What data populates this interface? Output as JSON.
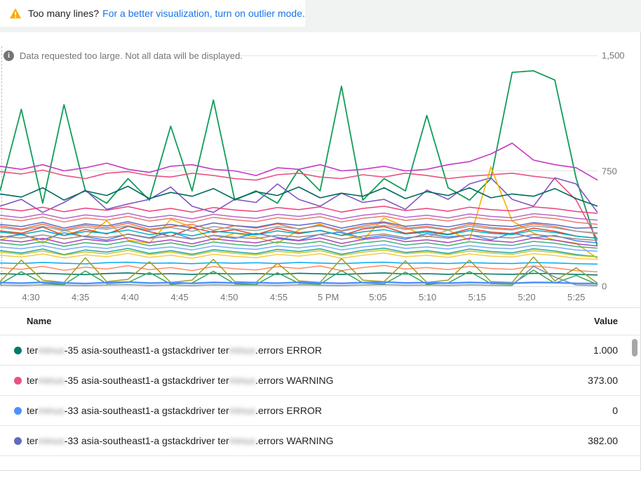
{
  "banner": {
    "text": "Too many lines?",
    "link": "For a better visualization, turn on outlier mode.",
    "warning_color": "#F9AB00",
    "link_color": "#1a73e8"
  },
  "notice": {
    "icon": "info",
    "text": "Data requested too large. Not all data will be displayed."
  },
  "chart_data": {
    "type": "line",
    "title": "",
    "xlabel": "",
    "ylabel": "",
    "ylim": [
      0,
      1500
    ],
    "grid": "horizontal",
    "legend_position": "bottom-table",
    "x_ticks": [
      "4:30",
      "4:35",
      "4:40",
      "4:45",
      "4:50",
      "4:55",
      "5 PM",
      "5:05",
      "5:10",
      "5:15",
      "5:20",
      "5:25"
    ],
    "y_ticks": [
      {
        "label": "1,500",
        "value": 1500
      },
      {
        "label": "750",
        "value": 750
      },
      {
        "label": "0",
        "value": 0
      }
    ],
    "series": [
      {
        "color": "#0F9D58",
        "w": 1.8,
        "values": [
          620,
          1150,
          540,
          1180,
          620,
          540,
          700,
          560,
          1040,
          620,
          1210,
          560,
          620,
          540,
          760,
          620,
          1300,
          560,
          700,
          620,
          1110,
          640,
          560,
          700,
          1390,
          1400,
          1340,
          700,
          260
        ]
      },
      {
        "color": "#C53AC1",
        "w": 1.6,
        "values": [
          780,
          760,
          790,
          750,
          770,
          800,
          760,
          740,
          780,
          790,
          760,
          750,
          720,
          770,
          760,
          790,
          750,
          760,
          780,
          750,
          760,
          790,
          810,
          860,
          930,
          820,
          790,
          770,
          690
        ]
      },
      {
        "color": "#E8537F",
        "w": 1.6,
        "values": [
          745,
          730,
          755,
          720,
          700,
          735,
          745,
          720,
          710,
          735,
          720,
          700,
          690,
          725,
          735,
          710,
          700,
          725,
          710,
          735,
          720,
          700,
          715,
          725,
          735,
          715,
          700,
          560,
          300
        ]
      },
      {
        "color": "#7E57C2",
        "w": 1.6,
        "values": [
          520,
          565,
          480,
          545,
          625,
          500,
          535,
          565,
          645,
          520,
          480,
          565,
          545,
          665,
          565,
          520,
          605,
          545,
          565,
          500,
          625,
          565,
          665,
          705,
          565,
          520,
          705,
          665,
          480
        ]
      },
      {
        "color": "#F4B400",
        "w": 1.6,
        "values": [
          300,
          345,
          280,
          365,
          320,
          425,
          300,
          280,
          435,
          385,
          300,
          345,
          320,
          280,
          365,
          405,
          345,
          300,
          445,
          385,
          320,
          365,
          300,
          775,
          425,
          345,
          300,
          280,
          180
        ]
      },
      {
        "color": "#00695C",
        "w": 1.6,
        "values": [
          600,
          580,
          640,
          560,
          620,
          590,
          650,
          570,
          610,
          585,
          635,
          565,
          615,
          590,
          645,
          575,
          605,
          585,
          640,
          570,
          615,
          590,
          640,
          575,
          600,
          585,
          635,
          570,
          520
        ]
      },
      {
        "color": "#DB4437",
        "w": 1.5,
        "values": [
          360,
          345,
          385,
          330,
          370,
          340,
          390,
          355,
          325,
          380,
          350,
          368,
          335,
          378,
          348,
          362,
          330,
          372,
          388,
          344,
          360,
          338,
          374,
          352,
          342,
          378,
          358,
          326,
          312
        ]
      },
      {
        "color": "#4285F4",
        "w": 1.5,
        "values": [
          318,
          336,
          302,
          348,
          322,
          300,
          340,
          315,
          352,
          308,
          330,
          312,
          344,
          318,
          298,
          338,
          352,
          312,
          330,
          306,
          342,
          320,
          334,
          302,
          346,
          316,
          330,
          296,
          282
        ]
      },
      {
        "color": "#FF7043",
        "w": 1.5,
        "values": [
          392,
          372,
          404,
          366,
          396,
          380,
          410,
          370,
          388,
          402,
          364,
          394,
          378,
          406,
          372,
          398,
          362,
          392,
          412,
          376,
          390,
          368,
          402,
          382,
          372,
          406,
          388,
          358,
          342
        ]
      },
      {
        "color": "#00ACC1",
        "w": 1.5,
        "values": [
          352,
          338,
          362,
          330,
          356,
          344,
          366,
          336,
          352,
          328,
          358,
          346,
          334,
          360,
          342,
          364,
          330,
          354,
          368,
          340,
          352,
          334,
          362,
          344,
          336,
          364,
          350,
          326,
          312
        ]
      },
      {
        "color": "#AB47BC",
        "w": 1.5,
        "values": [
          302,
          288,
          312,
          278,
          306,
          292,
          316,
          284,
          302,
          276,
          308,
          294,
          282,
          310,
          296,
          314,
          278,
          304,
          318,
          290,
          302,
          284,
          312,
          296,
          286,
          314,
          300,
          276,
          262
        ]
      },
      {
        "color": "#5C6BC0",
        "w": 1.5,
        "values": [
          402,
          388,
          416,
          378,
          406,
          392,
          420,
          386,
          402,
          380,
          412,
          394,
          384,
          410,
          396,
          414,
          378,
          404,
          418,
          390,
          402,
          386,
          412,
          396,
          388,
          414,
          400,
          378,
          382
        ]
      },
      {
        "color": "#26A69A",
        "w": 1.5,
        "values": [
          232,
          216,
          242,
          206,
          236,
          222,
          246,
          214,
          232,
          208,
          238,
          224,
          212,
          240,
          226,
          244,
          208,
          234,
          248,
          220,
          232,
          214,
          242,
          226,
          218,
          244,
          230,
          206,
          192
        ]
      },
      {
        "color": "#EC407A",
        "w": 1.5,
        "values": [
          506,
          490,
          514,
          484,
          508,
          494,
          518,
          488,
          506,
          482,
          512,
          496,
          486,
          512,
          498,
          516,
          482,
          506,
          520,
          492,
          506,
          488,
          514,
          498,
          490,
          516,
          505,
          486,
          474
        ]
      },
      {
        "color": "#BA68C8",
        "w": 1.5,
        "values": [
          462,
          446,
          470,
          440,
          464,
          450,
          474,
          444,
          462,
          438,
          468,
          452,
          442,
          468,
          454,
          472,
          438,
          462,
          476,
          448,
          462,
          444,
          470,
          454,
          446,
          472,
          460,
          442,
          430
        ]
      },
      {
        "color": "#E67C73",
        "w": 1.5,
        "values": [
          442,
          426,
          450,
          418,
          444,
          430,
          454,
          424,
          442,
          416,
          448,
          432,
          420,
          446,
          434,
          452,
          418,
          442,
          456,
          428,
          442,
          424,
          450,
          434,
          426,
          452,
          440,
          416,
          402
        ]
      },
      {
        "color": "#90A4AE",
        "w": 1.5,
        "values": [
          382,
          366,
          390,
          360,
          384,
          370,
          394,
          364,
          382,
          358,
          388,
          372,
          362,
          388,
          374,
          392,
          358,
          382,
          396,
          368,
          382,
          364,
          390,
          374,
          366,
          392,
          380,
          358,
          348
        ]
      },
      {
        "color": "#A1887F",
        "w": 1.5,
        "values": [
          326,
          314,
          334,
          308,
          328,
          316,
          338,
          312,
          326,
          306,
          332,
          318,
          310,
          332,
          320,
          336,
          306,
          326,
          340,
          316,
          326,
          312,
          334,
          320,
          314,
          336,
          324,
          308,
          298
        ]
      },
      {
        "color": "#41B375",
        "w": 1.5,
        "values": [
          282,
          268,
          290,
          260,
          284,
          270,
          294,
          264,
          282,
          258,
          288,
          272,
          262,
          288,
          274,
          292,
          258,
          282,
          296,
          268,
          282,
          264,
          290,
          274,
          266,
          292,
          280,
          258,
          248
        ]
      },
      {
        "color": "#7BAAF7",
        "w": 1.5,
        "values": [
          256,
          244,
          264,
          238,
          258,
          246,
          268,
          242,
          256,
          236,
          262,
          248,
          240,
          262,
          250,
          266,
          236,
          256,
          270,
          246,
          256,
          242,
          264,
          250,
          244,
          266,
          255,
          236,
          228
        ]
      },
      {
        "color": "#F7CB4D",
        "w": 1.5,
        "values": [
          202,
          190,
          210,
          184,
          204,
          192,
          214,
          188,
          202,
          182,
          208,
          194,
          186,
          208,
          196,
          212,
          182,
          202,
          216,
          192,
          202,
          188,
          210,
          196,
          190,
          212,
          200,
          182,
          174
        ]
      },
      {
        "color": "#C0CA33",
        "w": 1.5,
        "values": [
          222,
          208,
          230,
          202,
          224,
          210,
          234,
          206,
          222,
          200,
          228,
          214,
          204,
          228,
          216,
          232,
          200,
          222,
          236,
          212,
          222,
          206,
          230,
          216,
          208,
          232,
          220,
          200,
          190
        ]
      },
      {
        "color": "#FF8A65",
        "w": 1.5,
        "values": [
          122,
          110,
          130,
          104,
          124,
          112,
          134,
          108,
          122,
          102,
          128,
          114,
          106,
          128,
          116,
          132,
          102,
          122,
          136,
          112,
          122,
          108,
          130,
          116,
          110,
          132,
          120,
          102,
          94
        ]
      },
      {
        "color": "#03A9F4",
        "w": 1.5,
        "values": [
          152,
          148,
          155,
          150,
          146,
          153,
          157,
          149,
          152,
          147,
          154,
          150,
          153,
          148,
          155,
          151,
          147,
          153,
          157,
          150,
          152,
          148,
          154,
          150,
          148,
          154,
          152,
          147,
          144
        ]
      },
      {
        "color": "#00796B",
        "w": 1.6,
        "values": [
          82,
          78,
          85,
          80,
          76,
          83,
          87,
          79,
          82,
          77,
          84,
          80,
          83,
          78,
          85,
          81,
          77,
          83,
          87,
          80,
          82,
          78,
          84,
          80,
          78,
          84,
          82,
          77,
          74
        ]
      },
      {
        "color": "#9E9D24",
        "w": 1.5,
        "values": [
          30,
          170,
          40,
          25,
          185,
          30,
          45,
          160,
          25,
          40,
          175,
          30,
          25,
          150,
          35,
          25,
          180,
          40,
          30,
          165,
          25,
          40,
          170,
          30,
          25,
          190,
          35,
          120,
          20
        ]
      },
      {
        "color": "#34A853",
        "w": 1.5,
        "values": [
          15,
          95,
          20,
          12,
          100,
          18,
          25,
          90,
          14,
          22,
          98,
          16,
          12,
          88,
          20,
          14,
          102,
          22,
          16,
          92,
          14,
          22,
          96,
          18,
          14,
          105,
          20,
          70,
          12
        ]
      },
      {
        "color": "#78909C",
        "w": 1.5,
        "values": [
          8,
          6,
          9,
          7,
          5,
          8,
          10,
          6,
          8,
          5,
          9,
          7,
          8,
          6,
          9,
          7,
          5,
          8,
          10,
          7,
          8,
          6,
          9,
          7,
          6,
          130,
          60,
          8,
          5
        ]
      },
      {
        "color": "#4D90FE",
        "w": 2.4,
        "values": [
          24,
          20,
          26,
          22,
          18,
          24,
          28,
          21,
          24,
          19,
          25,
          22,
          24,
          20,
          26,
          23,
          19,
          24,
          28,
          22,
          24,
          20,
          25,
          22,
          20,
          25,
          24,
          19,
          18
        ]
      }
    ]
  },
  "legend": {
    "columns": [
      "Name",
      "Value"
    ],
    "rows": [
      {
        "color": "#00796B",
        "value": "1.000",
        "parts": [
          {
            "t": "ter"
          },
          {
            "t": "minus",
            "blur": true
          },
          {
            "t": "-35 asia-southeast1-a gstackdriver ter"
          },
          {
            "t": "minus",
            "blur": true
          },
          {
            "t": ".errors ERROR"
          }
        ]
      },
      {
        "color": "#E8537F",
        "value": "373.00",
        "parts": [
          {
            "t": "ter"
          },
          {
            "t": "minus",
            "blur": true
          },
          {
            "t": "-35 asia-southeast1-a gstackdriver ter"
          },
          {
            "t": "minus",
            "blur": true
          },
          {
            "t": ".errors WARNING"
          }
        ]
      },
      {
        "color": "#4D90FE",
        "value": "0",
        "parts": [
          {
            "t": "ter"
          },
          {
            "t": "minus",
            "blur": true
          },
          {
            "t": "-33 asia-southeast1-a gstackdriver ter"
          },
          {
            "t": "minus",
            "blur": true
          },
          {
            "t": ".errors ERROR"
          }
        ]
      },
      {
        "color": "#5F6CBF",
        "value": "382.00",
        "parts": [
          {
            "t": "ter"
          },
          {
            "t": "minus",
            "blur": true
          },
          {
            "t": "-33 asia-southeast1-a gstackdriver ter"
          },
          {
            "t": "minus",
            "blur": true
          },
          {
            "t": ".errors WARNING"
          }
        ]
      }
    ]
  }
}
